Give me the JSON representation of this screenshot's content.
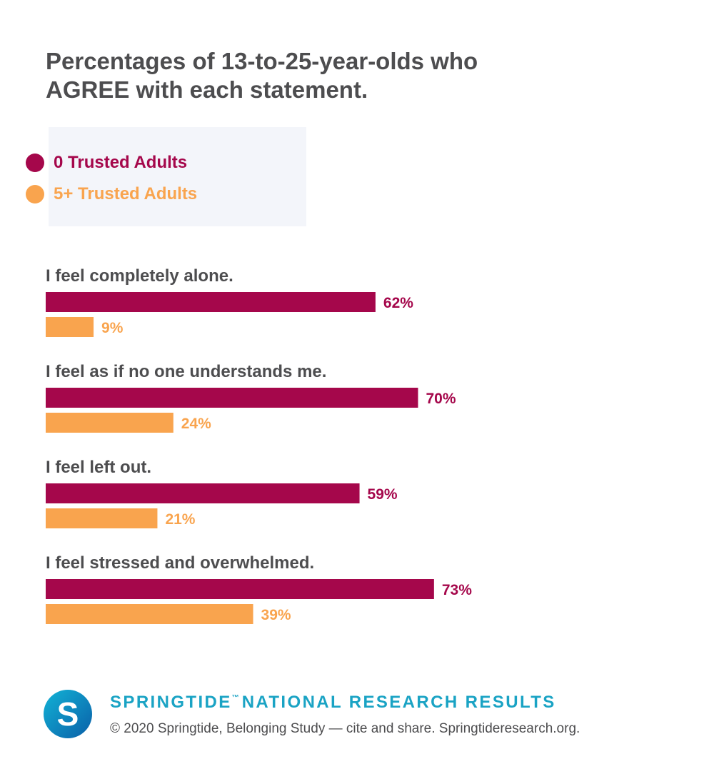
{
  "chart_data": {
    "type": "bar",
    "orientation": "horizontal",
    "title": "Percentages of 13-to-25-year-olds who AGREE with each statement.",
    "categories": [
      "I feel completely alone.",
      "I feel as if no one understands me.",
      "I feel left out.",
      "I feel stressed and overwhelmed."
    ],
    "series": [
      {
        "name": "0 Trusted Adults",
        "values": [
          62,
          70,
          59,
          73
        ],
        "labels": [
          "62%",
          "70%",
          "59%",
          "73%"
        ],
        "color": "#a5074b"
      },
      {
        "name": "5+ Trusted Adults",
        "values": [
          9,
          24,
          21,
          39
        ],
        "labels": [
          "9%",
          "24%",
          "21%",
          "39%"
        ],
        "color": "#f9a44e"
      }
    ],
    "xlim": [
      0,
      100
    ],
    "unit": "%",
    "grid": false,
    "legend_position": "top-left"
  },
  "footer": {
    "logo_letter": "S",
    "heading": "SPRINGTIDE",
    "trademark": "™",
    "heading_rest": "NATIONAL RESEARCH RESULTS",
    "credit": "© 2020 Springtide, Belonging Study — cite and share. Springtideresearch.org."
  },
  "colors": {
    "text": "#4d4d4f",
    "legend_bg": "#f3f5fa",
    "footer_accent": "#1aa3c4",
    "logo_blue": "#0a5fa8"
  },
  "icons": {
    "logo": "springtide-s-logo-icon"
  }
}
